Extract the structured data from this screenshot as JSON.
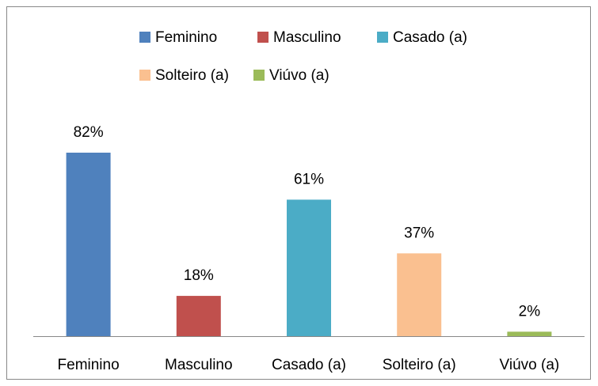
{
  "chart_data": {
    "type": "bar",
    "categories": [
      "Feminino",
      "Masculino",
      "Casado (a)",
      "Solteiro (a)",
      "Viúvo (a)"
    ],
    "values": [
      82,
      18,
      61,
      37,
      2
    ],
    "value_labels": [
      "82%",
      "18%",
      "61%",
      "37%",
      "2%"
    ],
    "colors": [
      "#4f81bd",
      "#c0504d",
      "#4bacc6",
      "#fac090",
      "#9bbb59"
    ],
    "legend": "top"
  }
}
